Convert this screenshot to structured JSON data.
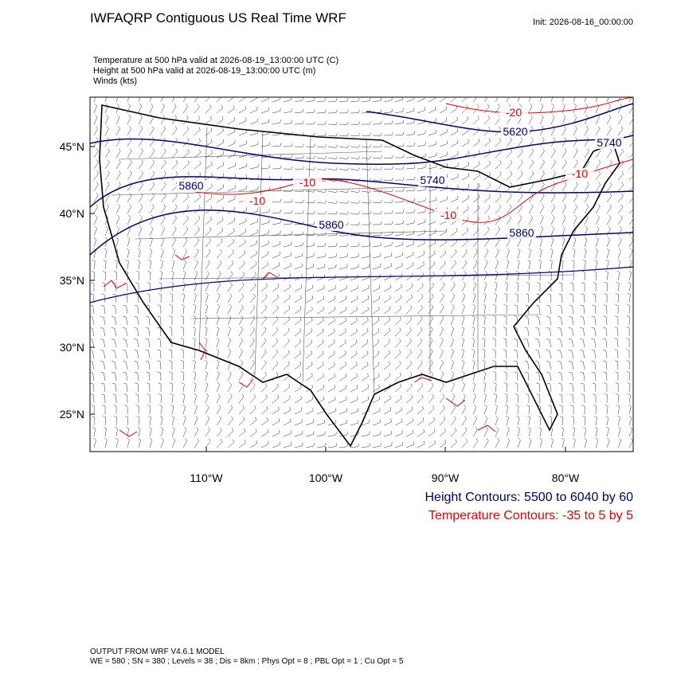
{
  "header": {
    "title": "IWFAQRP Contiguous US Real Time WRF",
    "init": "Init: 2026-08-16_00:00:00"
  },
  "subtitle": [
    "Temperature at 500 hPa valid at 2026-08-19_13:00:00 UTC   (C)",
    "Height at 500 hPa valid at 2026-08-19_13:00:00 UTC   (m)",
    "Winds   (kts)"
  ],
  "map": {
    "lat_labels": [
      "45°N",
      "40°N",
      "35°N",
      "30°N",
      "25°N"
    ],
    "lon_labels": [
      "110°W",
      "100°W",
      "90°W",
      "80°W"
    ],
    "contour_labels": [
      {
        "text": "-20",
        "kind": "temperature"
      },
      {
        "text": "5620",
        "kind": "height"
      },
      {
        "text": "5740",
        "kind": "height"
      },
      {
        "text": "-10",
        "kind": "temperature"
      },
      {
        "text": "-10",
        "kind": "temperature"
      },
      {
        "text": "5740",
        "kind": "height"
      },
      {
        "text": "5860",
        "kind": "height"
      },
      {
        "text": "-10",
        "kind": "temperature"
      },
      {
        "text": "-10",
        "kind": "temperature"
      },
      {
        "text": "5860",
        "kind": "height"
      },
      {
        "text": "5860",
        "kind": "height"
      }
    ]
  },
  "legend": [
    "Height Contours: 5500 to 6040 by 60",
    "Temperature Contours: -35 to 5 by 5"
  ],
  "footer": [
    "OUTPUT FROM WRF V4.6.1 MODEL",
    "WE = 580 ; SN = 380 ; Levels = 38 ; Dis = 8km ; Phys Opt = 8 ; PBL Opt = 1 ; Cu Opt = 5"
  ]
}
